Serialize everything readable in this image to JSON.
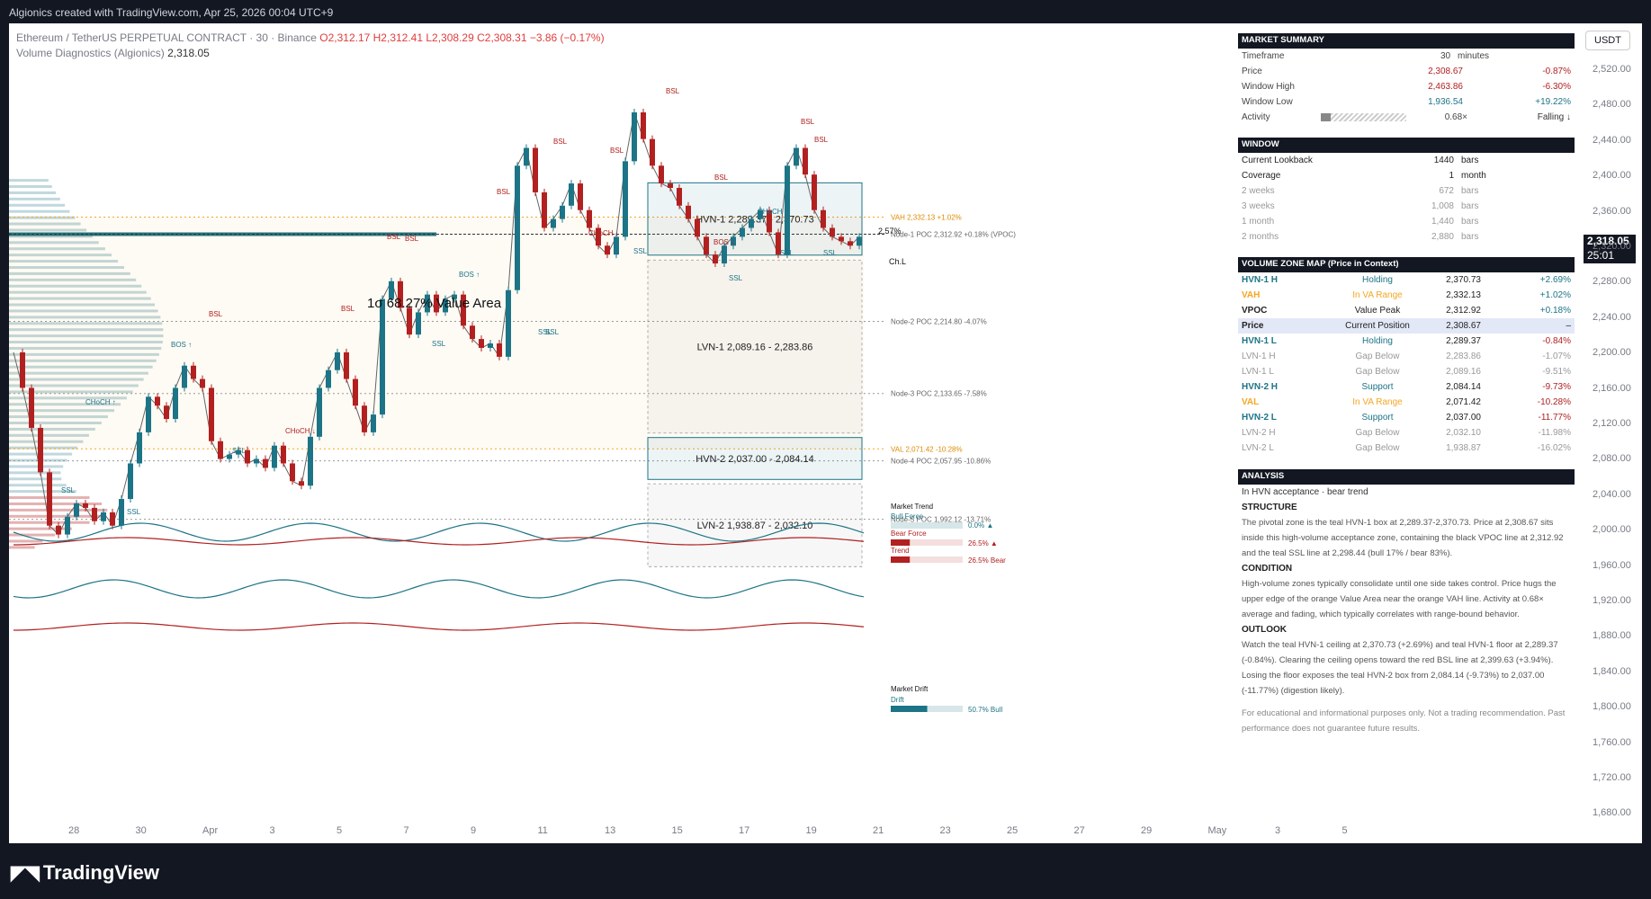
{
  "header": {
    "created_by": "Algionics created with TradingView.com, Apr 25, 2026 00:04 UTC+9"
  },
  "legend": {
    "symbol": "Ethereum / TetherUS PERPETUAL CONTRACT · 30 · Binance",
    "o": "O2,312.17",
    "h": "H2,312.41",
    "l": "L2,308.29",
    "c": "C2,308.31",
    "chg": "−3.86 (−0.17%)",
    "indicator": "Volume Diagnostics (Algionics)",
    "indicator_value": "2,318.05"
  },
  "axis": {
    "currency": "USDT",
    "current_price": "2,318.05",
    "countdown": "25:01"
  },
  "footer": {
    "brand": "TradingView"
  },
  "colors": {
    "teal": "#1c7486",
    "red": "#b22020",
    "orange": "#f5a623",
    "dark": "#131722"
  },
  "chart_data": {
    "type": "line",
    "title": "",
    "ylim": [
      1660,
      2540
    ],
    "y_ticks": [
      "2,520.00",
      "2,480.00",
      "2,440.00",
      "2,400.00",
      "2,360.00",
      "2,320.00",
      "2,280.00",
      "2,240.00",
      "2,200.00",
      "2,160.00",
      "2,120.00",
      "2,080.00",
      "2,040.00",
      "2,000.00",
      "1,960.00",
      "1,920.00",
      "1,880.00",
      "1,840.00",
      "1,800.00",
      "1,760.00",
      "1,720.00",
      "1,680.00"
    ],
    "x_ticks": [
      "28",
      "30",
      "Apr",
      "3",
      "5",
      "7",
      "9",
      "11",
      "13",
      "15",
      "17",
      "19",
      "21",
      "23",
      "25",
      "27",
      "29",
      "May",
      "3",
      "5"
    ],
    "series": [
      {
        "values": [
          2180,
          2140,
          2095,
          2045,
          1985,
          1975,
          1995,
          2010,
          2005,
          1990,
          2000,
          1985,
          2015,
          2055,
          2090,
          2130,
          2120,
          2105,
          2140,
          2165,
          2150,
          2140,
          2080,
          2060,
          2065,
          2070,
          2055,
          2060,
          2050,
          2075,
          2055,
          2035,
          2030,
          2085,
          2140,
          2160,
          2180,
          2150,
          2120,
          2090,
          2110,
          2240,
          2260,
          2230,
          2200,
          2225,
          2245,
          2225,
          2240,
          2245,
          2210,
          2195,
          2185,
          2190,
          2175,
          2250,
          2390,
          2410,
          2360,
          2320,
          2330,
          2345,
          2370,
          2340,
          2320,
          2300,
          2290,
          2310,
          2395,
          2450,
          2420,
          2390,
          2370,
          2365,
          2345,
          2330,
          2310,
          2290,
          2280,
          2300,
          2310,
          2320,
          2330,
          2340,
          2315,
          2290,
          2390,
          2410,
          2380,
          2340,
          2320,
          2310,
          2305,
          2300,
          2310
        ]
      }
    ],
    "levels": [
      {
        "label": "VAH 2,332.13 +1.02%",
        "value": 2332.13
      },
      {
        "label": "Node-1 POC 2,312.92 +0.18% (VPOC)",
        "value": 2312.92
      },
      {
        "label": "Node-2 POC 2,214.80 -4.07%",
        "value": 2214.8
      },
      {
        "label": "Node-3 POC 2,133.65 -7.58%",
        "value": 2133.65
      },
      {
        "label": "VAL 2,071.42 -10.28%",
        "value": 2071.42
      },
      {
        "label": "Node-4 POC 2,057.95 -10.86%",
        "value": 2057.95
      },
      {
        "label": "Node-5 POC 1,992.12 -13.71%",
        "value": 1992.12
      }
    ],
    "zones": [
      {
        "label": "HVN-1  2,289.37 - 2,370.73",
        "low": 2289.37,
        "high": 2370.73
      },
      {
        "label": "LVN-1  2,089.16 - 2,283.86",
        "low": 2089.16,
        "high": 2283.86
      },
      {
        "label": "HVN-2  2,037.00 - 2,084.14",
        "low": 2037.0,
        "high": 2084.14
      },
      {
        "label": "LVN-2  1,938.87 - 2,032.10",
        "low": 1938.87,
        "high": 2032.1
      }
    ],
    "annotations": {
      "value_area": "1σ 68.27%  Value Area",
      "pct": "2.57%",
      "chl": "Ch.L",
      "labels": [
        "BSL",
        "BSL",
        "BSL",
        "BSL",
        "BSL",
        "BSL",
        "BSL",
        "BSL",
        "BSL",
        "BSL",
        "BSL",
        "SSL",
        "SSL",
        "SSL",
        "SSL",
        "SSL",
        "SSL",
        "SSL",
        "SSL",
        "SSL",
        "SSL",
        "BOS ↑",
        "BOS ↑",
        "BOS ↓",
        "CHoCH ↑",
        "CHoCH ↓",
        "CHoCH ↑",
        "CHoCH ↓"
      ]
    },
    "market_trend": {
      "title": "Market Trend",
      "bull_label": "Bull Force",
      "bull_value": "0.0% ▲",
      "bear_label": "Bear Force",
      "bear_value": "26.5% ▲",
      "trend_label": "Trend",
      "trend_value": "26.5% Bear",
      "bull_pct": 0.0,
      "bear_pct": 26.5
    },
    "market_drift": {
      "title": "Market Drift",
      "drift_label": "Drift",
      "drift_value": "50.7% Bull",
      "drift_pct": 50.7
    }
  },
  "summary": {
    "title": "MARKET SUMMARY",
    "timeframe_label": "Timeframe",
    "timeframe_value": "30",
    "timeframe_unit": "minutes",
    "rows": [
      {
        "label": "Price",
        "value": "2,308.67",
        "pct": "-0.87%"
      },
      {
        "label": "Window High",
        "value": "2,463.86",
        "pct": "-6.30%"
      },
      {
        "label": "Window Low",
        "value": "1,936.54",
        "pct": "+19.22%"
      }
    ],
    "activity_label": "Activity",
    "activity_value": "0.68×",
    "activity_state": "Falling ↓",
    "activity_pct": 12
  },
  "window": {
    "title": "WINDOW",
    "rows": [
      {
        "label": "Current Lookback",
        "value": "1440",
        "unit": "bars"
      },
      {
        "label": "Coverage",
        "value": "1",
        "unit": "month"
      },
      {
        "label": "2 weeks",
        "value": "672",
        "unit": "bars"
      },
      {
        "label": "3 weeks",
        "value": "1,008",
        "unit": "bars"
      },
      {
        "label": "1 month",
        "value": "1,440",
        "unit": "bars"
      },
      {
        "label": "2 months",
        "value": "2,880",
        "unit": "bars"
      }
    ]
  },
  "zone_map": {
    "title": "VOLUME ZONE MAP (Price in Context)",
    "rows": [
      {
        "label": "HVN-1 H",
        "status": "Holding",
        "value": "2,370.73",
        "pct": "+2.69%",
        "kind": "teal"
      },
      {
        "label": "VAH",
        "status": "In VA Range",
        "value": "2,332.13",
        "pct": "+1.02%",
        "kind": "orange"
      },
      {
        "label": "VPOC",
        "status": "Value Peak",
        "value": "2,312.92",
        "pct": "+0.18%",
        "kind": "dark"
      },
      {
        "label": "Price",
        "status": "Current Position",
        "value": "2,308.67",
        "pct": "–",
        "kind": "price"
      },
      {
        "label": "HVN-1 L",
        "status": "Holding",
        "value": "2,289.37",
        "pct": "-0.84%",
        "kind": "teal"
      },
      {
        "label": "LVN-1 H",
        "status": "Gap Below",
        "value": "2,283.86",
        "pct": "-1.07%",
        "kind": "grey"
      },
      {
        "label": "LVN-1 L",
        "status": "Gap Below",
        "value": "2,089.16",
        "pct": "-9.51%",
        "kind": "grey"
      },
      {
        "label": "HVN-2 H",
        "status": "Support",
        "value": "2,084.14",
        "pct": "-9.73%",
        "kind": "teal"
      },
      {
        "label": "VAL",
        "status": "In VA Range",
        "value": "2,071.42",
        "pct": "-10.28%",
        "kind": "orange"
      },
      {
        "label": "HVN-2 L",
        "status": "Support",
        "value": "2,037.00",
        "pct": "-11.77%",
        "kind": "teal"
      },
      {
        "label": "LVN-2 H",
        "status": "Gap Below",
        "value": "2,032.10",
        "pct": "-11.98%",
        "kind": "grey"
      },
      {
        "label": "LVN-2 L",
        "status": "Gap Below",
        "value": "1,938.87",
        "pct": "-16.02%",
        "kind": "grey"
      }
    ]
  },
  "analysis": {
    "title": "ANALYSIS",
    "subtitle": "In HVN acceptance · bear trend",
    "structure_h": "STRUCTURE",
    "structure": "The pivotal zone is the teal HVN-1 box at 2,289.37-2,370.73. Price at 2,308.67 sits inside this high-volume acceptance zone, containing the black VPOC line at 2,312.92 and the teal SSL line at 2,298.44 (bull 17% / bear 83%).",
    "condition_h": "CONDITION",
    "condition": "High-volume zones typically consolidate until one side takes control. Price hugs the upper edge of the orange Value Area near the orange VAH line. Activity at 0.68× average and fading, which typically correlates with range-bound behavior.",
    "outlook_h": "OUTLOOK",
    "outlook": "Watch the teal HVN-1 ceiling at 2,370.73 (+2.69%) and teal HVN-1 floor at 2,289.37 (-0.84%). Clearing the ceiling opens toward the red BSL line at 2,399.63 (+3.94%). Losing the floor exposes the teal HVN-2 box from 2,084.14 (-9.73%) to 2,037.00 (-11.77%) (digestion likely).",
    "disclaimer": "For educational and informational purposes only. Not a trading recommendation. Past performance does not guarantee future results."
  }
}
